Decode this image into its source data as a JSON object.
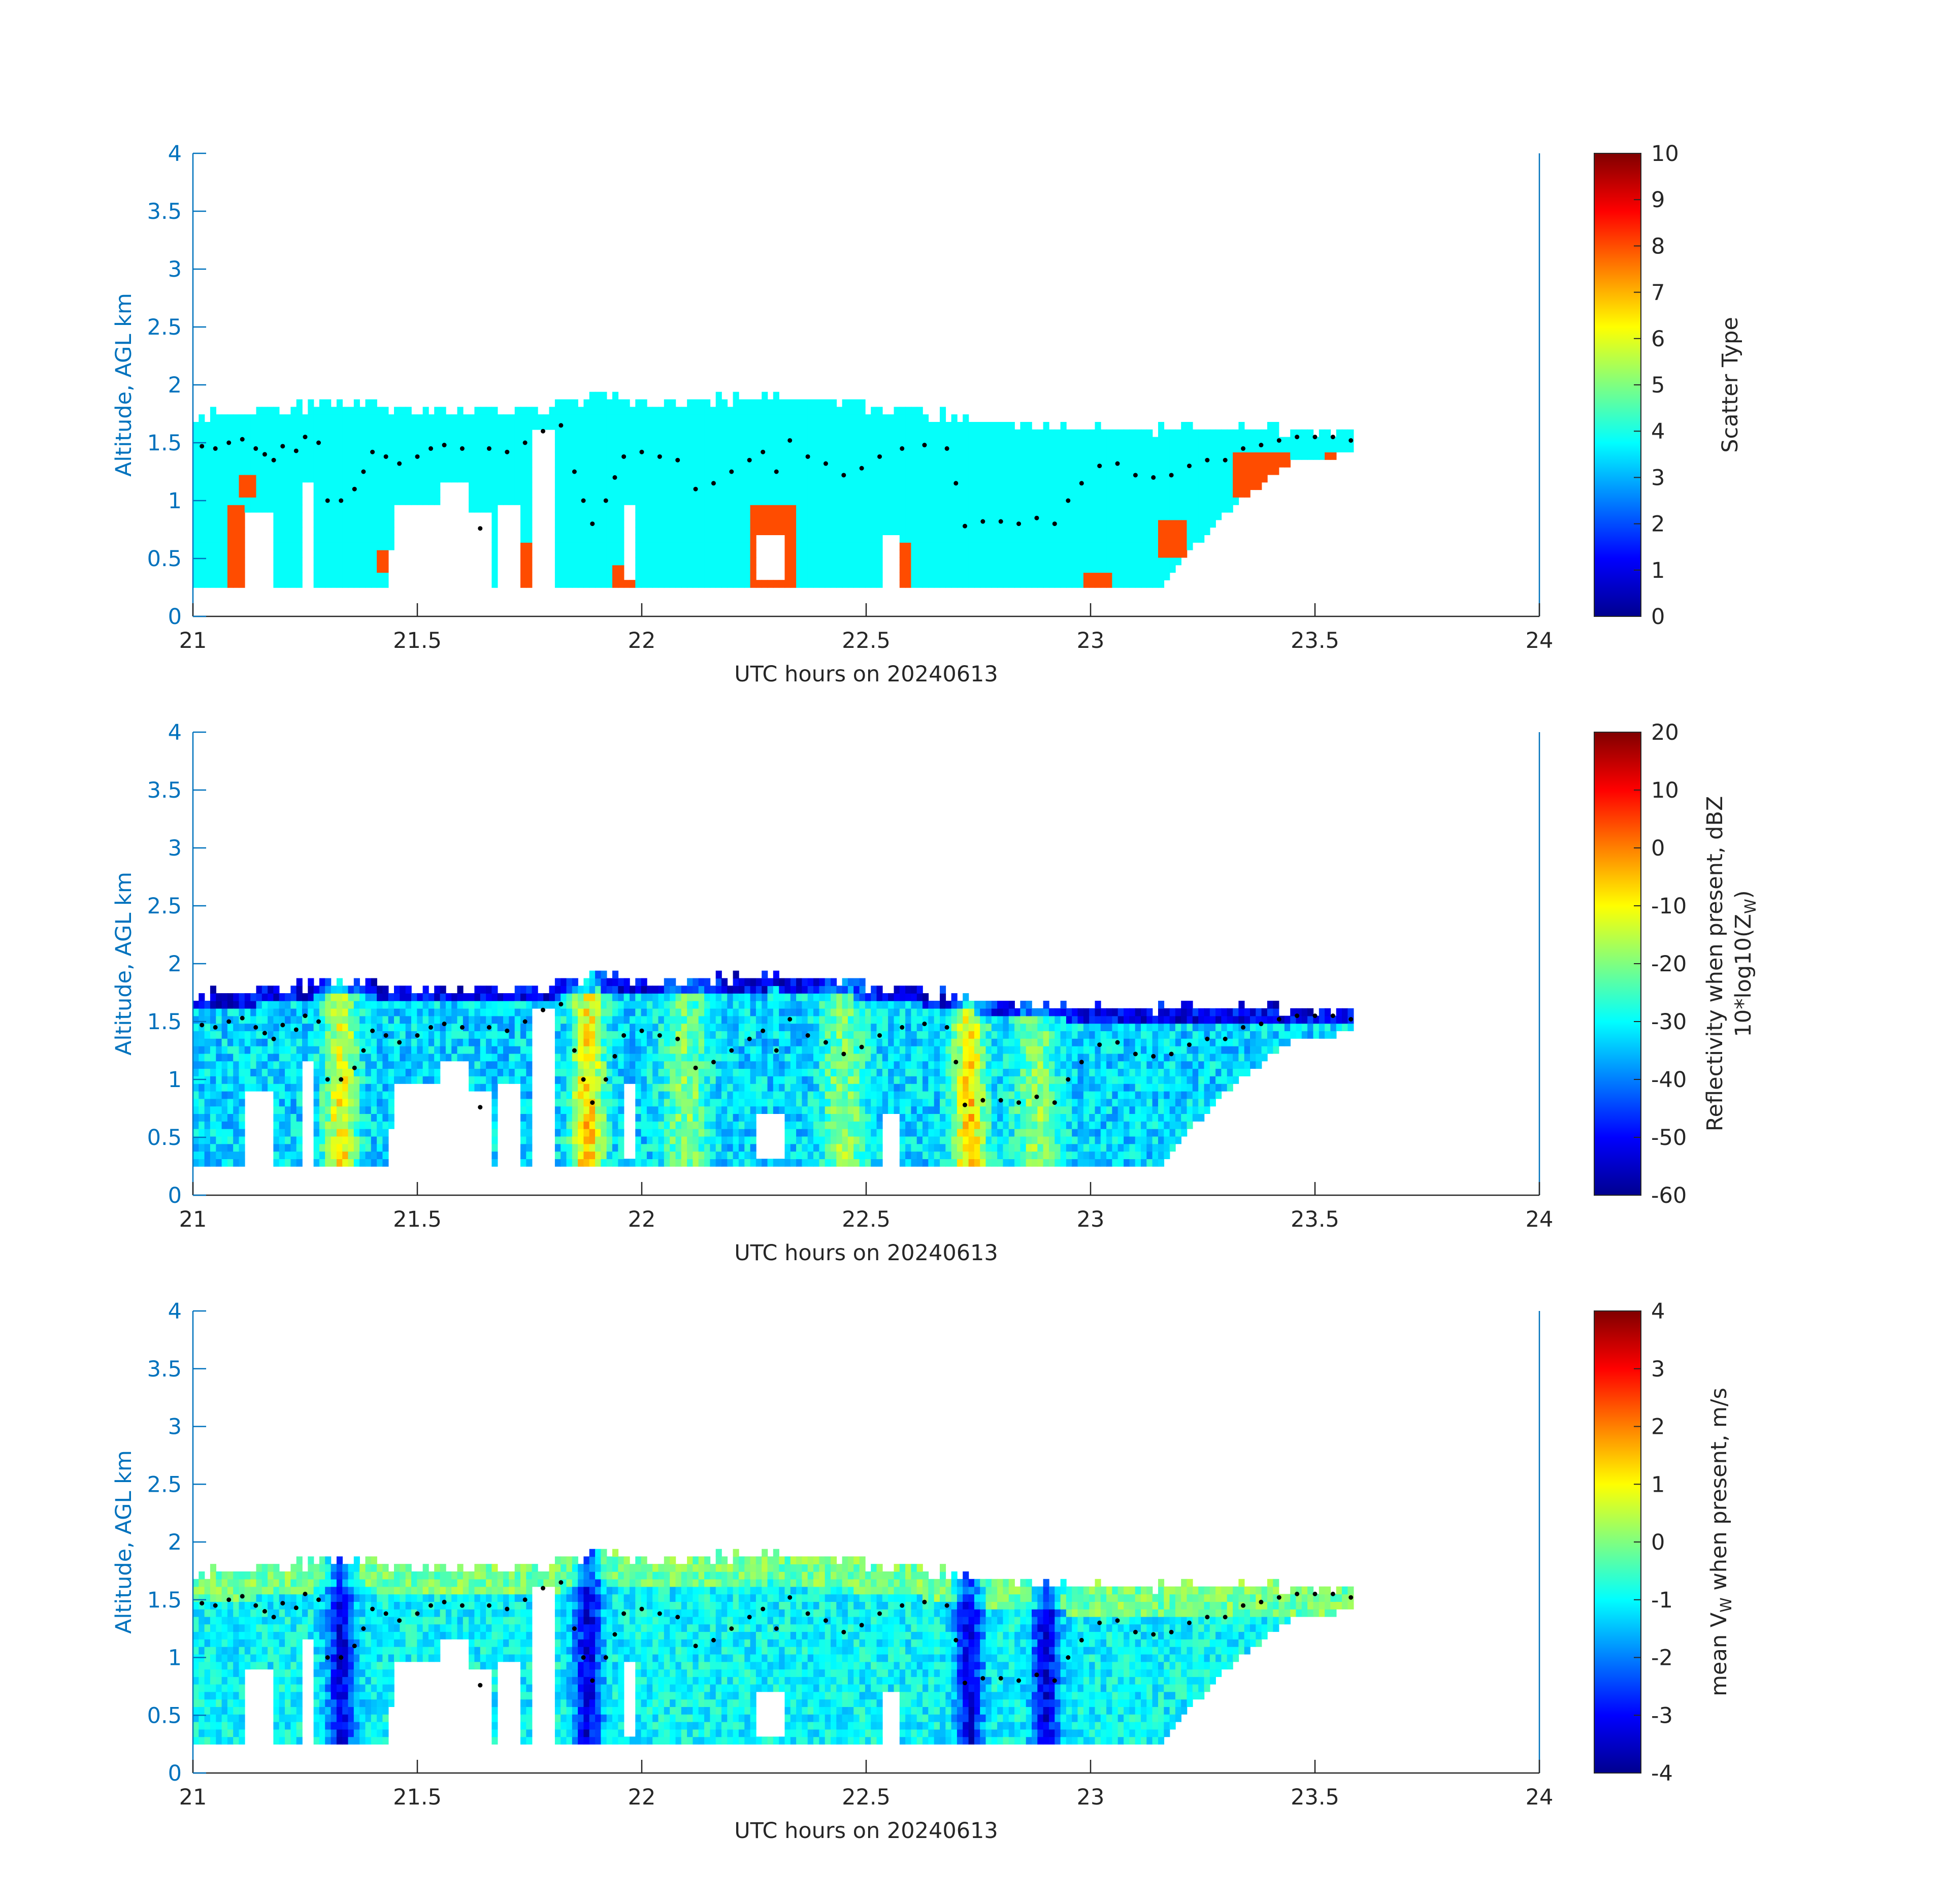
{
  "panels": [
    {
      "ylabel": "Altitude, AGL km",
      "xlabel": "UTC hours on 20240613",
      "colorbar_label": [
        "Scatter Type"
      ],
      "colorbar_ticks": [
        "0",
        "1",
        "2",
        "3",
        "4",
        "5",
        "6",
        "7",
        "8",
        "9",
        "10"
      ]
    },
    {
      "ylabel": "Altitude, AGL km",
      "xlabel": "UTC hours on 20240613",
      "colorbar_label": [
        "Reflectivity when present, dBZ",
        "10*log10(Z",
        "W",
        ")"
      ],
      "colorbar_ticks": [
        "-60",
        "-50",
        "-40",
        "-30",
        "-20",
        "-10",
        "0",
        "10",
        "20"
      ]
    },
    {
      "ylabel": "Altitude, AGL km",
      "xlabel": "UTC hours on 20240613",
      "colorbar_label": [
        "mean V",
        "W",
        " when present, m/s"
      ],
      "colorbar_ticks": [
        "-4",
        "-3",
        "-2",
        "-1",
        "0",
        "1",
        "2",
        "3",
        "4"
      ]
    }
  ],
  "axes": {
    "x_ticks": [
      "21",
      "21.5",
      "22",
      "22.5",
      "23",
      "23.5",
      "24"
    ],
    "y_ticks": [
      "0",
      "0.5",
      "1",
      "1.5",
      "2",
      "2.5",
      "3",
      "3.5",
      "4"
    ]
  },
  "chart_data": [
    {
      "type": "heatmap",
      "xlabel": "UTC hours on 20240613",
      "ylabel": "Altitude, AGL km",
      "xlim": [
        21,
        24
      ],
      "ylim": [
        0,
        4
      ],
      "colorbar": {
        "label": "Scatter Type",
        "range": [
          0,
          10
        ],
        "colormap": "jet"
      },
      "cloud_top_km": [
        [
          21.0,
          1.74
        ],
        [
          21.2,
          1.78
        ],
        [
          21.33,
          1.88
        ],
        [
          21.5,
          1.78
        ],
        [
          21.75,
          1.78
        ],
        [
          21.9,
          1.9
        ],
        [
          22.0,
          1.85
        ],
        [
          22.3,
          1.9
        ],
        [
          22.6,
          1.78
        ],
        [
          22.75,
          1.7
        ],
        [
          23.0,
          1.62
        ],
        [
          23.3,
          1.62
        ],
        [
          23.6,
          1.57
        ]
      ],
      "cloud_base_km": [
        [
          21.0,
          0.25
        ],
        [
          23.15,
          0.25
        ],
        [
          23.3,
          0.9
        ],
        [
          23.45,
          1.35
        ],
        [
          23.58,
          1.4
        ]
      ],
      "values_present": [
        4,
        8
      ]
    },
    {
      "type": "heatmap",
      "xlabel": "UTC hours on 20240613",
      "ylabel": "Altitude, AGL km",
      "xlim": [
        21,
        24
      ],
      "ylim": [
        0,
        4
      ],
      "colorbar": {
        "label": "Reflectivity when present, dBZ 10*log10(Z_W)",
        "range": [
          -60,
          20
        ],
        "colormap": "jet"
      },
      "strong_echo_columns_utc": [
        21.33,
        21.88,
        22.1,
        22.45,
        22.73,
        22.88
      ]
    },
    {
      "type": "heatmap",
      "xlabel": "UTC hours on 20240613",
      "ylabel": "Altitude, AGL km",
      "xlim": [
        21,
        24
      ],
      "ylim": [
        0,
        4
      ],
      "colorbar": {
        "label": "mean V_W when present, m/s",
        "range": [
          -4,
          4
        ],
        "colormap": "jet"
      },
      "downdraft_columns_utc": [
        21.33,
        21.88,
        22.73,
        22.9
      ]
    }
  ],
  "overlay_dots": {
    "series": "black dots",
    "points": [
      [
        21.02,
        1.47
      ],
      [
        21.05,
        1.45
      ],
      [
        21.08,
        1.5
      ],
      [
        21.11,
        1.53
      ],
      [
        21.14,
        1.45
      ],
      [
        21.16,
        1.4
      ],
      [
        21.18,
        1.35
      ],
      [
        21.2,
        1.47
      ],
      [
        21.23,
        1.43
      ],
      [
        21.25,
        1.55
      ],
      [
        21.28,
        1.5
      ],
      [
        21.3,
        1.0
      ],
      [
        21.33,
        1.0
      ],
      [
        21.36,
        1.1
      ],
      [
        21.38,
        1.25
      ],
      [
        21.4,
        1.42
      ],
      [
        21.43,
        1.38
      ],
      [
        21.46,
        1.32
      ],
      [
        21.5,
        1.38
      ],
      [
        21.53,
        1.45
      ],
      [
        21.56,
        1.48
      ],
      [
        21.6,
        1.45
      ],
      [
        21.64,
        0.76
      ],
      [
        21.66,
        1.45
      ],
      [
        21.7,
        1.42
      ],
      [
        21.74,
        1.5
      ],
      [
        21.78,
        1.6
      ],
      [
        21.82,
        1.65
      ],
      [
        21.85,
        1.25
      ],
      [
        21.87,
        1.0
      ],
      [
        21.89,
        0.8
      ],
      [
        21.92,
        1.0
      ],
      [
        21.94,
        1.2
      ],
      [
        21.96,
        1.38
      ],
      [
        22.0,
        1.42
      ],
      [
        22.04,
        1.38
      ],
      [
        22.08,
        1.35
      ],
      [
        22.12,
        1.1
      ],
      [
        22.16,
        1.15
      ],
      [
        22.2,
        1.25
      ],
      [
        22.24,
        1.35
      ],
      [
        22.27,
        1.42
      ],
      [
        22.3,
        1.25
      ],
      [
        22.33,
        1.52
      ],
      [
        22.37,
        1.38
      ],
      [
        22.41,
        1.32
      ],
      [
        22.45,
        1.22
      ],
      [
        22.49,
        1.28
      ],
      [
        22.53,
        1.38
      ],
      [
        22.58,
        1.45
      ],
      [
        22.63,
        1.48
      ],
      [
        22.68,
        1.45
      ],
      [
        22.7,
        1.15
      ],
      [
        22.72,
        0.78
      ],
      [
        22.76,
        0.82
      ],
      [
        22.8,
        0.82
      ],
      [
        22.84,
        0.8
      ],
      [
        22.88,
        0.85
      ],
      [
        22.92,
        0.8
      ],
      [
        22.95,
        1.0
      ],
      [
        22.98,
        1.15
      ],
      [
        23.02,
        1.3
      ],
      [
        23.06,
        1.32
      ],
      [
        23.1,
        1.22
      ],
      [
        23.14,
        1.2
      ],
      [
        23.18,
        1.22
      ],
      [
        23.22,
        1.3
      ],
      [
        23.26,
        1.35
      ],
      [
        23.3,
        1.35
      ],
      [
        23.34,
        1.45
      ],
      [
        23.38,
        1.48
      ],
      [
        23.42,
        1.52
      ],
      [
        23.46,
        1.55
      ],
      [
        23.5,
        1.55
      ],
      [
        23.54,
        1.55
      ],
      [
        23.58,
        1.52
      ]
    ]
  }
}
